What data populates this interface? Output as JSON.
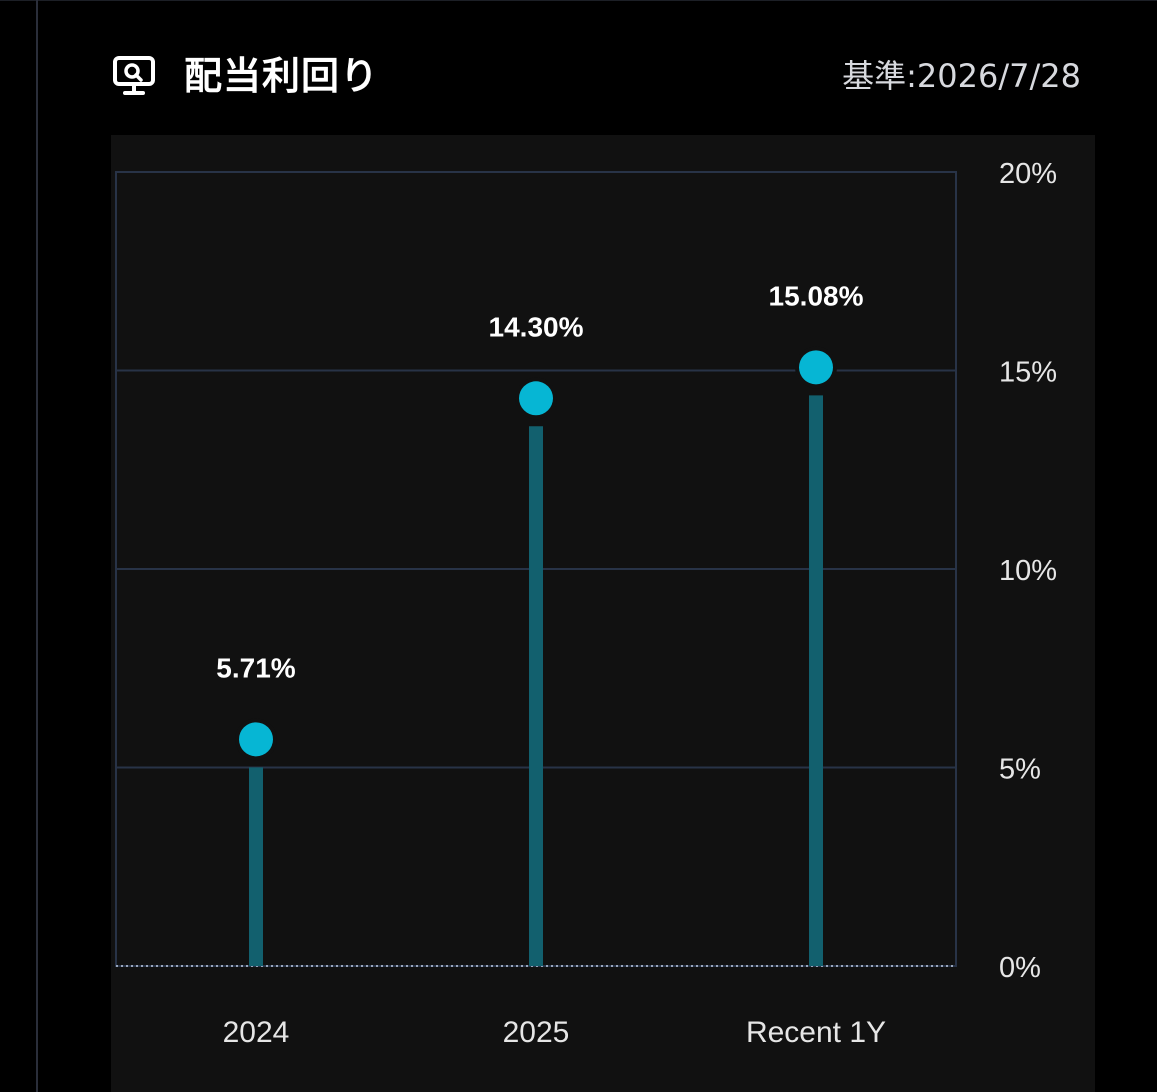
{
  "header": {
    "title": "配当利回り",
    "as_of": "基準:2026/7/28",
    "icon": "monitor-chart-icon"
  },
  "colors": {
    "background": "#000000",
    "panel": "#111111",
    "grid": "#283347",
    "stem": "#12606e",
    "dot": "#06b6d4",
    "text": "#ffffff",
    "axis_text": "#e6e6e6"
  },
  "chart_data": {
    "type": "lollipop",
    "categories": [
      "2024",
      "2025",
      "Recent 1Y"
    ],
    "values": [
      5.71,
      14.3,
      15.08
    ],
    "value_labels": [
      "5.71%",
      "14.30%",
      "15.08%"
    ],
    "ylim": [
      0,
      20
    ],
    "yticks": [
      0,
      5,
      10,
      15,
      20
    ],
    "ytick_labels": [
      "0%",
      "5%",
      "10%",
      "15%",
      "20%"
    ],
    "y_axis_position": "right",
    "grid": true,
    "title": "",
    "xlabel": "",
    "ylabel": ""
  }
}
